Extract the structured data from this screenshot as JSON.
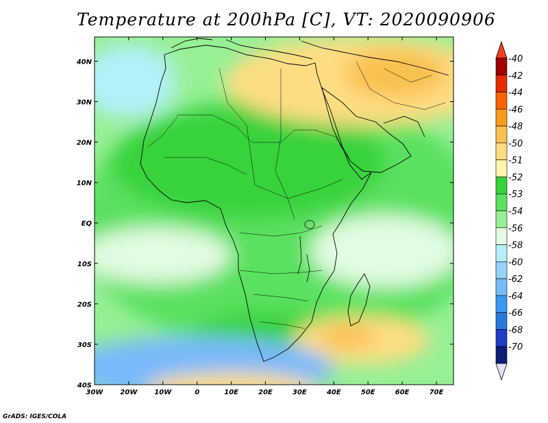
{
  "title": "Temperature at 200hPa [C], VT: 2020090906",
  "credit": "GrADS: IGES/COLA",
  "map": {
    "lon_range": [
      -30,
      75
    ],
    "lat_range": [
      -40,
      46
    ],
    "lon_ticks": [
      {
        "value": -30,
        "label": "30W"
      },
      {
        "value": -20,
        "label": "20W"
      },
      {
        "value": -10,
        "label": "10W"
      },
      {
        "value": 0,
        "label": "0"
      },
      {
        "value": 10,
        "label": "10E"
      },
      {
        "value": 20,
        "label": "20E"
      },
      {
        "value": 30,
        "label": "30E"
      },
      {
        "value": 40,
        "label": "40E"
      },
      {
        "value": 50,
        "label": "50E"
      },
      {
        "value": 60,
        "label": "60E"
      },
      {
        "value": 70,
        "label": "70E"
      }
    ],
    "lat_ticks": [
      {
        "value": 40,
        "label": "40N"
      },
      {
        "value": 30,
        "label": "30N"
      },
      {
        "value": 20,
        "label": "20N"
      },
      {
        "value": 10,
        "label": "10N"
      },
      {
        "value": 0,
        "label": "EQ"
      },
      {
        "value": -10,
        "label": "10S"
      },
      {
        "value": -20,
        "label": "20S"
      },
      {
        "value": -30,
        "label": "30S"
      },
      {
        "value": -40,
        "label": "40S"
      }
    ]
  },
  "colorbar": {
    "levels": [
      {
        "label": "-40",
        "color": "#a00000"
      },
      {
        "label": "-42",
        "color": "#e42c00"
      },
      {
        "label": "-44",
        "color": "#f86400"
      },
      {
        "label": "-46",
        "color": "#fa9b1c"
      },
      {
        "label": "-48",
        "color": "#fac050"
      },
      {
        "label": "-50",
        "color": "#fedd82"
      },
      {
        "label": "-51",
        "color": "#fef4aa"
      },
      {
        "label": "-52",
        "color": "#37d23c"
      },
      {
        "label": "-53",
        "color": "#5ae15f"
      },
      {
        "label": "-54",
        "color": "#96f096"
      },
      {
        "label": "-56",
        "color": "#e2fbe2"
      },
      {
        "label": "-58",
        "color": "#b4f0fa"
      },
      {
        "label": "-60",
        "color": "#96d2fa"
      },
      {
        "label": "-62",
        "color": "#78b9fa"
      },
      {
        "label": "-64",
        "color": "#3c97f5"
      },
      {
        "label": "-66",
        "color": "#2878dc"
      },
      {
        "label": "-68",
        "color": "#1e3cc8"
      },
      {
        "label": "-70",
        "color": "#0a1e78"
      }
    ],
    "top_arrow_color": "#f04020",
    "bottom_arrow_color": "#e0e0ff"
  },
  "fields": [
    {
      "type": "ellipse",
      "cx": 25,
      "cy": 0,
      "rx": 60,
      "ry": 32,
      "color": "#5ae15f"
    },
    {
      "type": "ellipse",
      "cx": 15,
      "cy": 15,
      "rx": 40,
      "ry": 14,
      "color": "#37d23c"
    },
    {
      "type": "ellipse",
      "cx": 55,
      "cy": -7,
      "rx": 22,
      "ry": 9,
      "color": "#e2fbe2"
    },
    {
      "type": "ellipse",
      "cx": -12,
      "cy": -8,
      "rx": 22,
      "ry": 7,
      "color": "#e2fbe2"
    },
    {
      "type": "ellipse",
      "cx": 20,
      "cy": -27,
      "rx": 20,
      "ry": 5,
      "color": "#37d23c"
    },
    {
      "type": "ellipse",
      "cx": 48,
      "cy": -29,
      "rx": 20,
      "ry": 6,
      "color": "#fedd82"
    },
    {
      "type": "ellipse",
      "cx": 44,
      "cy": -28,
      "rx": 8,
      "ry": 3,
      "color": "#fac050"
    },
    {
      "type": "ellipse",
      "cx": 48,
      "cy": 35,
      "rx": 40,
      "ry": 11,
      "color": "#fedd82"
    },
    {
      "type": "ellipse",
      "cx": 58,
      "cy": 37,
      "rx": 15,
      "ry": 6,
      "color": "#fac050"
    },
    {
      "type": "ellipse",
      "cx": -20,
      "cy": 35,
      "rx": 14,
      "ry": 9,
      "color": "#b4f0fa"
    },
    {
      "type": "ellipse",
      "cx": 0,
      "cy": -36,
      "rx": 40,
      "ry": 8,
      "color": "#78b9fa"
    },
    {
      "type": "ellipse",
      "cx": 10,
      "cy": -41,
      "rx": 25,
      "ry": 4,
      "color": "#fedd82"
    }
  ]
}
